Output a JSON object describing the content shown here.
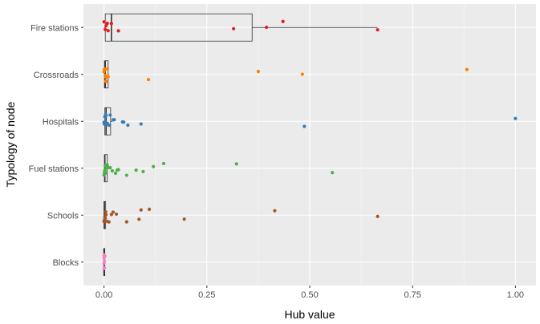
{
  "chart_data": {
    "type": "boxplot-jitter",
    "orientation": "horizontal",
    "xlabel": "Hub value",
    "ylabel": "Typology of node",
    "xlim": [
      -0.05,
      1.05
    ],
    "x_ticks": [
      0.0,
      0.25,
      0.5,
      0.75,
      1.0
    ],
    "x_tick_labels": [
      "0.00",
      "0.25",
      "0.50",
      "0.75",
      "1.00"
    ],
    "grid": true,
    "legend": "none",
    "panel_background": "#ebebeb",
    "categories": [
      "Fire stations",
      "Crossroads",
      "Hospitals",
      "Fuel stations",
      "Schools",
      "Blocks"
    ],
    "series": [
      {
        "name": "Fire stations",
        "color": "#e41a1c",
        "box": {
          "min": 0.0,
          "q1": 0.003,
          "median": 0.018,
          "q3": 0.36,
          "max": 0.665
        },
        "points": [
          0.0,
          0.003,
          0.005,
          0.008,
          0.01,
          0.018,
          0.035,
          0.315,
          0.395,
          0.435,
          0.665
        ]
      },
      {
        "name": "Crossroads",
        "color": "#ff7f00",
        "box": {
          "min": 0.0,
          "q1": 0.001,
          "median": 0.003,
          "q3": 0.01,
          "max": 0.012
        },
        "points": [
          0.0,
          0.001,
          0.002,
          0.003,
          0.004,
          0.005,
          0.006,
          0.008,
          0.01,
          0.108,
          0.375,
          0.482,
          0.882
        ]
      },
      {
        "name": "Hospitals",
        "color": "#377eb8",
        "box": {
          "min": 0.0,
          "q1": 0.002,
          "median": 0.005,
          "q3": 0.016,
          "max": 0.02
        },
        "points": [
          0.0,
          0.001,
          0.002,
          0.003,
          0.004,
          0.005,
          0.006,
          0.008,
          0.012,
          0.015,
          0.022,
          0.025,
          0.045,
          0.048,
          0.058,
          0.09,
          0.487,
          1.0
        ]
      },
      {
        "name": "Fuel stations",
        "color": "#4daf4a",
        "box": {
          "min": 0.0,
          "q1": 0.001,
          "median": 0.002,
          "q3": 0.008,
          "max": 0.01
        },
        "points": [
          0.0,
          0.001,
          0.002,
          0.003,
          0.004,
          0.005,
          0.006,
          0.008,
          0.01,
          0.015,
          0.02,
          0.028,
          0.032,
          0.035,
          0.055,
          0.078,
          0.095,
          0.12,
          0.145,
          0.322,
          0.555
        ]
      },
      {
        "name": "Schools",
        "color": "#a65628",
        "box": {
          "min": 0.0,
          "q1": 0.0,
          "median": 0.001,
          "q3": 0.004,
          "max": 0.006
        },
        "points": [
          0.0,
          0.0005,
          0.001,
          0.002,
          0.003,
          0.004,
          0.005,
          0.008,
          0.012,
          0.018,
          0.022,
          0.03,
          0.055,
          0.085,
          0.09,
          0.11,
          0.195,
          0.415,
          0.665
        ]
      },
      {
        "name": "Blocks",
        "color": "#f781bf",
        "box": {
          "min": 0.0,
          "q1": 0.0,
          "median": 0.0,
          "q3": 0.001,
          "max": 0.002
        },
        "points": [
          0.0,
          0.0,
          0.0,
          0.0005,
          0.0005,
          0.001,
          0.001,
          0.0015,
          0.002
        ]
      }
    ]
  }
}
